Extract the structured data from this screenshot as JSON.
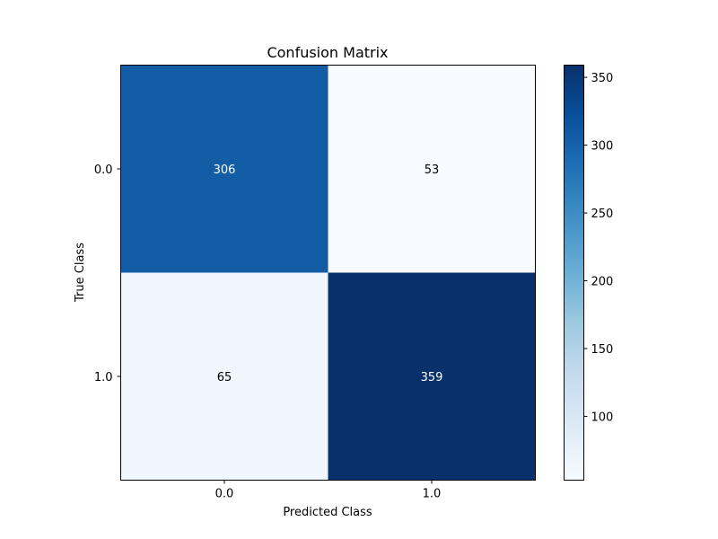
{
  "chart_data": {
    "type": "heatmap",
    "title": "Confusion Matrix",
    "xlabel": "Predicted Class",
    "ylabel": "True Class",
    "x_categories": [
      "0.0",
      "1.0"
    ],
    "y_categories": [
      "0.0",
      "1.0"
    ],
    "values": [
      [
        306,
        53
      ],
      [
        65,
        359
      ]
    ],
    "colormap": "Blues",
    "vmin": 53,
    "vmax": 359,
    "colorbar_ticks": [
      100,
      150,
      200,
      250,
      300,
      350
    ],
    "cell_text_colors": {
      "light": "#ffffff",
      "dark": "#000000"
    }
  }
}
